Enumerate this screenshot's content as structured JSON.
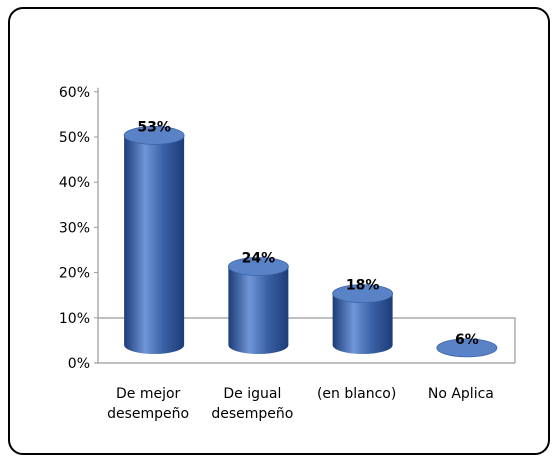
{
  "chart_data": {
    "type": "bar",
    "style": "3d-cylinder",
    "categories": [
      [
        "De mejor",
        "desempeño"
      ],
      [
        "De igual",
        "desempeño"
      ],
      [
        "(en blanco)"
      ],
      [
        "No Aplica"
      ]
    ],
    "values": [
      53,
      24,
      18,
      6
    ],
    "data_labels": [
      "53%",
      "24%",
      "18%",
      "6%"
    ],
    "y_ticks": [
      "0%",
      "10%",
      "20%",
      "30%",
      "40%",
      "50%",
      "60%"
    ],
    "ylim": [
      0,
      60
    ],
    "y_unit": "%",
    "grid": false,
    "legend": "none",
    "colors": {
      "bar": "#3a62a6",
      "bar_light": "#6f96d6",
      "bar_dark": "#1d3c78",
      "bar_top": "#5a82c6",
      "frame": "#000000",
      "axis": "#9a9a9a"
    }
  }
}
